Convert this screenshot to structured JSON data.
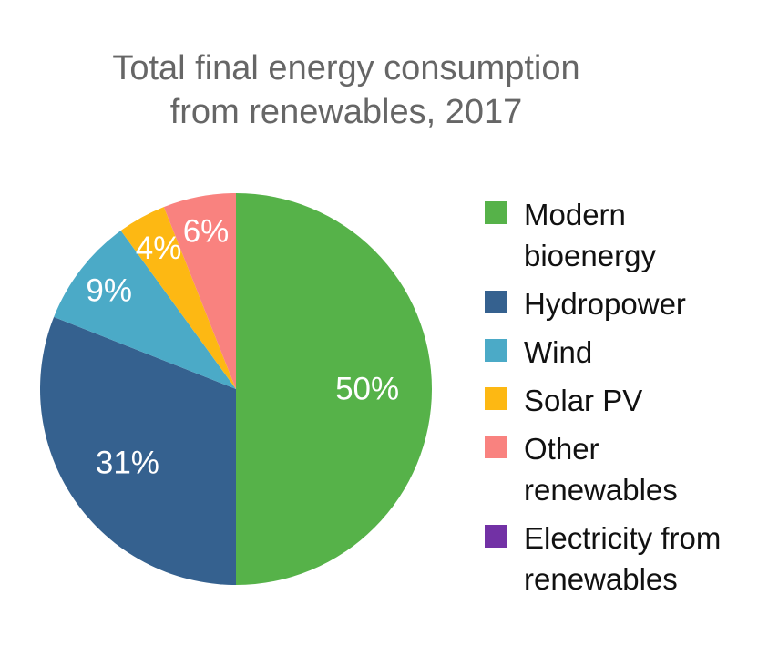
{
  "title": "Total final energy consumption\nfrom renewables, 2017",
  "colors": {
    "background": "#ffffff",
    "title_text": "#666666",
    "legend_text": "#111111",
    "slice_label_text": "#ffffff"
  },
  "chart_data": {
    "type": "pie",
    "title": "Total final energy consumption from renewables, 2017",
    "unit": "%",
    "legend_position": "right",
    "start_angle_deg": 0,
    "direction": "clockwise",
    "slices": [
      {
        "label": "Modern bioenergy",
        "value": 50,
        "color": "#56B249",
        "legend_label": "Modern\nbioenergy",
        "data_label": "50%"
      },
      {
        "label": "Hydropower",
        "value": 31,
        "color": "#35618F",
        "legend_label": "Hydropower",
        "data_label": "31%"
      },
      {
        "label": "Wind",
        "value": 9,
        "color": "#4BAAC7",
        "legend_label": "Wind",
        "data_label": "9%"
      },
      {
        "label": "Solar PV",
        "value": 4,
        "color": "#FDB813",
        "legend_label": "Solar PV",
        "data_label": "4%"
      },
      {
        "label": "Other renewables",
        "value": 6,
        "color": "#F9827F",
        "legend_label": "Other\nrenewables",
        "data_label": "6%"
      },
      {
        "label": "Electricity from renewables",
        "value": 0,
        "color": "#7231A5",
        "legend_label": "Electricity from\nrenewables",
        "data_label": ""
      }
    ]
  }
}
